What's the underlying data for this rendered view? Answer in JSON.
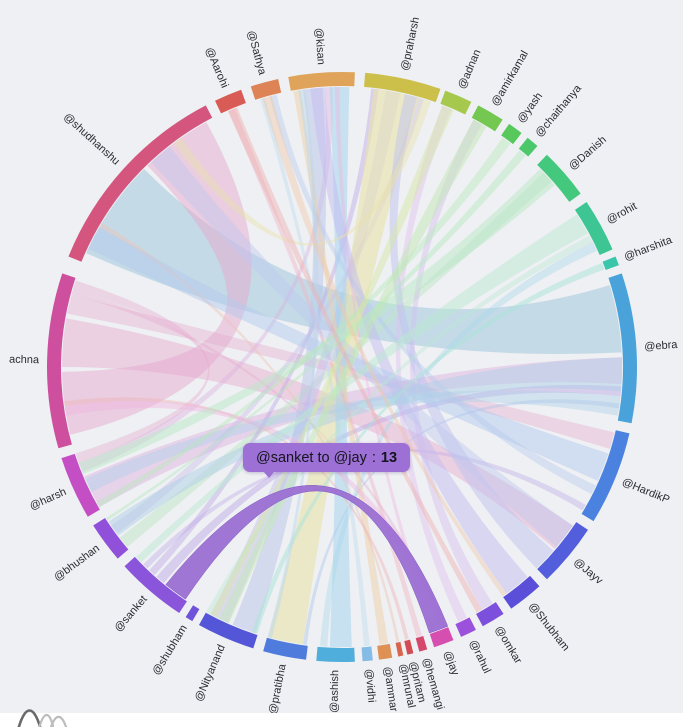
{
  "page": {
    "background": "#EEF0F3",
    "footer_background": "#FFFFFF"
  },
  "tooltip": {
    "text": "@sanket to @jay",
    "separator": ":",
    "value": "13",
    "background": "#9C70D4"
  },
  "chart_data": {
    "type": "chord",
    "title": "",
    "legend": "none",
    "description": "Chord diagram of mention connections between users; hovered chord shows @sanket to @jay : 13",
    "highlighted_ribbon": {
      "source": "@sanket",
      "target": "@jay",
      "value": 13
    },
    "nodes": [
      {
        "label": "@kisan",
        "color": "#DFA45A",
        "start": 349.5,
        "end": 362.5
      },
      {
        "label": "@praharsh",
        "color": "#CDC04A",
        "start": 4.5,
        "end": 19.5
      },
      {
        "label": "@adnan",
        "color": "#A6C94D",
        "start": 20.5,
        "end": 26
      },
      {
        "label": "@amirkamal",
        "color": "#74C851",
        "start": 27.5,
        "end": 33
      },
      {
        "label": "@yash",
        "color": "#58C85C",
        "start": 34.5,
        "end": 37.5
      },
      {
        "label": "@chaithanya",
        "color": "#4CC86B",
        "start": 39,
        "end": 41.5
      },
      {
        "label": "@Danish",
        "color": "#43C87D",
        "start": 44,
        "end": 54
      },
      {
        "label": "@rohit",
        "color": "#3DC694",
        "start": 56,
        "end": 66.5
      },
      {
        "label": "@harshita",
        "color": "#3AC6AB",
        "start": 68,
        "end": 69.8
      },
      {
        "label": "@ebra",
        "color": "#49A2DA",
        "start": 71.5,
        "end": 101
      },
      {
        "label": "@HardikP",
        "color": "#4C82DF",
        "start": 103,
        "end": 121.5
      },
      {
        "label": "@Jayv",
        "color": "#525EDB",
        "start": 123.5,
        "end": 136
      },
      {
        "label": "@Shubham",
        "color": "#5B4ED9",
        "start": 138,
        "end": 145
      },
      {
        "label": "@omkar",
        "color": "#7C50DC",
        "start": 146.8,
        "end": 151.5
      },
      {
        "label": "@rahul",
        "color": "#9B51DC",
        "start": 153,
        "end": 156.2
      },
      {
        "label": "@jay",
        "color": "#D64FB0",
        "start": 157.8,
        "end": 161.8
      },
      {
        "label": "@hemangi",
        "color": "#D4486C",
        "start": 163.2,
        "end": 164.8
      },
      {
        "label": "@pritam",
        "color": "#D44A52",
        "start": 166,
        "end": 167.2
      },
      {
        "label": "@mrunal",
        "color": "#D8644C",
        "start": 168,
        "end": 169
      },
      {
        "label": "@ammar",
        "color": "#DE9055",
        "start": 170.2,
        "end": 172.8
      },
      {
        "label": "@vidhi",
        "color": "#85BCE5",
        "start": 174,
        "end": 176
      },
      {
        "label": "@ashish",
        "color": "#4FAEDC",
        "start": 177.5,
        "end": 185
      },
      {
        "label": "@pratibha",
        "color": "#4F7BDC",
        "start": 187,
        "end": 195.5
      },
      {
        "label": "@Nityanand",
        "color": "#5356D6",
        "start": 197.5,
        "end": 209
      },
      {
        "label": "@shubham",
        "color": "#6F52DA",
        "start": 210.5,
        "end": 212
      },
      {
        "label": "@sanket",
        "color": "#8A55DB",
        "start": 213.5,
        "end": 227.5
      },
      {
        "label": "@bhushan",
        "color": "#9150DA",
        "start": 229.5,
        "end": 237.5
      },
      {
        "label": "@harsh",
        "color": "#C44FC4",
        "start": 239.5,
        "end": 252
      },
      {
        "label": "achna",
        "color": "#CE4F9E",
        "start": 254,
        "end": 288.5
      },
      {
        "label": "@shudhanshu",
        "color": "#D4567E",
        "start": 292,
        "end": 332.5
      },
      {
        "label": "@Aarohi",
        "color": "#D95B55",
        "start": 334.5,
        "end": 340
      },
      {
        "label": "@Sathya",
        "color": "#DD8355",
        "start": 342,
        "end": 347.5
      }
    ],
    "ribbons": [
      {
        "source": "@shudhanshu",
        "target": "@ebra",
        "s": [
          294,
          315
        ],
        "t": [
          73,
          87
        ],
        "color": "#A9CBDF",
        "opacity": 0.6
      },
      {
        "source": "achna",
        "target": "@shudhanshu",
        "s": [
          256,
          269
        ],
        "t": [
          316,
          331
        ],
        "color": "#E6A9CE",
        "opacity": 0.5
      },
      {
        "source": "achna",
        "target": "@Jayv",
        "s": [
          270,
          280
        ],
        "t": [
          124.5,
          130.5
        ],
        "color": "#E6A9CE",
        "opacity": 0.45
      },
      {
        "source": "achna",
        "target": "@HardikP",
        "s": [
          281,
          285
        ],
        "t": [
          103.5,
          107
        ],
        "color": "#E6A9CE",
        "opacity": 0.4
      },
      {
        "source": "achna",
        "target": "@harsh",
        "s": [
          286,
          288
        ],
        "t": [
          250,
          252
        ],
        "color": "#E6A9CE",
        "opacity": 0.4
      },
      {
        "source": "achna",
        "target": "@jay",
        "s": [
          285,
          286
        ],
        "t": [
          158.2,
          159
        ],
        "color": "#E6A9CE",
        "opacity": 0.4
      },
      {
        "source": "@harsh",
        "target": "@ebra",
        "s": [
          240,
          247
        ],
        "t": [
          88,
          93.5
        ],
        "color": "#DCAEDE",
        "opacity": 0.45
      },
      {
        "source": "@harsh",
        "target": "@kisan",
        "s": [
          248,
          250
        ],
        "t": [
          356.5,
          358
        ],
        "color": "#DCAEDE",
        "opacity": 0.4
      },
      {
        "source": "@bhushan",
        "target": "@Danish",
        "s": [
          230,
          232.5
        ],
        "t": [
          46,
          48.5
        ],
        "color": "#BFE5C8",
        "opacity": 0.5
      },
      {
        "source": "@bhushan",
        "target": "@praharsh",
        "s": [
          233.5,
          235.5
        ],
        "t": [
          15.5,
          17
        ],
        "color": "#CDC2EA",
        "opacity": 0.45
      },
      {
        "source": "@sanket",
        "target": "@ebra",
        "s": [
          219.5,
          221.5
        ],
        "t": [
          94,
          96
        ],
        "color": "#BFA9E6",
        "opacity": 0.5
      },
      {
        "source": "@sanket",
        "target": "@praharsh",
        "s": [
          222,
          223.5
        ],
        "t": [
          6,
          7.5
        ],
        "color": "#BFA9E6",
        "opacity": 0.45
      },
      {
        "source": "@sanket",
        "target": "@HardikP",
        "s": [
          224,
          225.2
        ],
        "t": [
          119.5,
          120.8
        ],
        "color": "#BFA9E6",
        "opacity": 0.4
      },
      {
        "source": "@Nityanand",
        "target": "@kisan",
        "s": [
          198,
          203
        ],
        "t": [
          352,
          356
        ],
        "color": "#B9C3EA",
        "opacity": 0.5
      },
      {
        "source": "@Nityanand",
        "target": "@praharsh",
        "s": [
          204,
          208
        ],
        "t": [
          9,
          12
        ],
        "color": "#C3BDEC",
        "opacity": 0.45
      },
      {
        "source": "@pratibha",
        "target": "@praharsh",
        "s": [
          188,
          195.3
        ],
        "t": [
          6.5,
          16
        ],
        "color": "#E9E3AC",
        "opacity": 0.6
      },
      {
        "source": "@pratibha",
        "target": "@ebra",
        "s": [
          187.2,
          188
        ],
        "t": [
          97.5,
          98.5
        ],
        "color": "#AFC6EA",
        "opacity": 0.45
      },
      {
        "source": "@ashish",
        "target": "@kisan",
        "s": [
          178,
          182.5
        ],
        "t": [
          357.5,
          361.5
        ],
        "color": "#A8D6EC",
        "opacity": 0.55
      },
      {
        "source": "@ashish",
        "target": "@rohit",
        "s": [
          183,
          184.5
        ],
        "t": [
          63.5,
          65.5
        ],
        "color": "#A8D6EC",
        "opacity": 0.4
      },
      {
        "source": "@vidhi",
        "target": "@Sathya",
        "s": [
          174.3,
          175.5
        ],
        "t": [
          343,
          344
        ],
        "color": "#BFDCF0",
        "opacity": 0.45
      },
      {
        "source": "@ammar",
        "target": "@kisan",
        "s": [
          170.5,
          172.3
        ],
        "t": [
          350,
          351.5
        ],
        "color": "#EECFA8",
        "opacity": 0.5
      },
      {
        "source": "@mrunal",
        "target": "@shudhanshu",
        "s": [
          168.2,
          168.8
        ],
        "t": [
          300,
          301
        ],
        "color": "#EDC3B5",
        "opacity": 0.45
      },
      {
        "source": "@pritam",
        "target": "achna",
        "s": [
          166.2,
          167
        ],
        "t": [
          262,
          263
        ],
        "color": "#EFB3B8",
        "opacity": 0.45
      },
      {
        "source": "@hemangi",
        "target": "@Aarohi",
        "s": [
          163.4,
          164.6
        ],
        "t": [
          336,
          337.5
        ],
        "color": "#EFB3C5",
        "opacity": 0.45
      },
      {
        "source": "@jay",
        "target": "achna",
        "s": [
          158,
          160
        ],
        "t": [
          260,
          262
        ],
        "color": "#F0B5E0",
        "opacity": 0.45
      },
      {
        "source": "@jay",
        "target": "@kisan",
        "s": [
          160.5,
          161.5
        ],
        "t": [
          358.5,
          359.5
        ],
        "color": "#F0B5E0",
        "opacity": 0.4
      },
      {
        "source": "@omkar",
        "target": "@amirkamal",
        "s": [
          147.5,
          150
        ],
        "t": [
          28,
          30
        ],
        "color": "#D5BEEF",
        "opacity": 0.45
      },
      {
        "source": "@rahul",
        "target": "@adnan",
        "s": [
          153.5,
          155.5
        ],
        "t": [
          21,
          23
        ],
        "color": "#DFC2F0",
        "opacity": 0.45
      },
      {
        "source": "@Shubham",
        "target": "@kisan",
        "s": [
          138.5,
          144
        ],
        "t": [
          353.5,
          356.5
        ],
        "color": "#C3BCEF",
        "opacity": 0.5
      },
      {
        "source": "@Jayv",
        "target": "@praharsh",
        "s": [
          131,
          136
        ],
        "t": [
          13,
          15.5
        ],
        "color": "#BFC2F0",
        "opacity": 0.5
      },
      {
        "source": "@Jayv",
        "target": "@shudhanshu",
        "s": [
          124.5,
          130
        ],
        "t": [
          317,
          322
        ],
        "color": "#BFC8F0",
        "opacity": 0.45
      },
      {
        "source": "@HardikP",
        "target": "@shudhanshu",
        "s": [
          108,
          114
        ],
        "t": [
          295,
          300
        ],
        "color": "#B3C9EE",
        "opacity": 0.5
      },
      {
        "source": "@HardikP",
        "target": "@Sathya",
        "s": [
          115,
          117
        ],
        "t": [
          345,
          346.5
        ],
        "color": "#B3C9EE",
        "opacity": 0.4
      },
      {
        "source": "@ebra",
        "target": "@bhushan",
        "s": [
          88,
          95
        ],
        "t": [
          233,
          236.5
        ],
        "color": "#AFD0E8",
        "opacity": 0.5
      },
      {
        "source": "@ebra",
        "target": "@harsh",
        "s": [
          96,
          100
        ],
        "t": [
          243.5,
          246.5
        ],
        "color": "#AFD0E8",
        "opacity": 0.45
      },
      {
        "source": "@harshita",
        "target": "@Nityanand",
        "s": [
          68.2,
          69.6
        ],
        "t": [
          197.6,
          198.8
        ],
        "color": "#A9E3D8",
        "opacity": 0.5
      },
      {
        "source": "@rohit",
        "target": "@sanket",
        "s": [
          57,
          61.5
        ],
        "t": [
          225.8,
          227.3
        ],
        "color": "#B9E8D2",
        "opacity": 0.5
      },
      {
        "source": "@rohit",
        "target": "@Nityanand",
        "s": [
          62,
          63.5
        ],
        "t": [
          208,
          209
        ],
        "color": "#B9E8D2",
        "opacity": 0.4
      },
      {
        "source": "@Danish",
        "target": "@harsh",
        "s": [
          45,
          49.5
        ],
        "t": [
          247.5,
          250
        ],
        "color": "#B9E8C6",
        "opacity": 0.5
      },
      {
        "source": "@chaithanya",
        "target": "@bhushan",
        "s": [
          39.3,
          41
        ],
        "t": [
          236.8,
          237.4
        ],
        "color": "#B3E8BF",
        "opacity": 0.45
      },
      {
        "source": "@yash",
        "target": "@harsh",
        "s": [
          35,
          37
        ],
        "t": [
          240,
          241.2
        ],
        "color": "#B5E8BA",
        "opacity": 0.45
      },
      {
        "source": "@amirkamal",
        "target": "@Nityanand",
        "s": [
          28,
          31
        ],
        "t": [
          203.8,
          206
        ],
        "color": "#C2E8B3",
        "opacity": 0.5
      },
      {
        "source": "@adnan",
        "target": "@Nityanand",
        "s": [
          21,
          23.5
        ],
        "t": [
          206.5,
          208
        ],
        "color": "#D5E8A8",
        "opacity": 0.5
      },
      {
        "source": "@praharsh",
        "target": "@shudhanshu",
        "s": [
          16.5,
          18.5
        ],
        "t": [
          323,
          325
        ],
        "color": "#E9E3AC",
        "opacity": 0.45
      },
      {
        "source": "@kisan",
        "target": "@pratibha",
        "s": [
          351,
          352.5
        ],
        "t": [
          194.5,
          195.4
        ],
        "color": "#BCD8EA",
        "opacity": 0.5
      },
      {
        "source": "@Aarohi",
        "target": "@omkar",
        "s": [
          336,
          338
        ],
        "t": [
          150,
          151.3
        ],
        "color": "#EFB0AF",
        "opacity": 0.45
      },
      {
        "source": "@Sathya",
        "target": "@Shubham",
        "s": [
          343.5,
          345.5
        ],
        "t": [
          144,
          145
        ],
        "color": "#F0C8A8",
        "opacity": 0.45
      },
      {
        "source": "@sanket",
        "target": "@jay",
        "s": [
          214,
          219
        ],
        "t": [
          157.8,
          161.8
        ],
        "color": "#9B6FD3",
        "opacity": 0.95,
        "highlight": true
      }
    ]
  }
}
